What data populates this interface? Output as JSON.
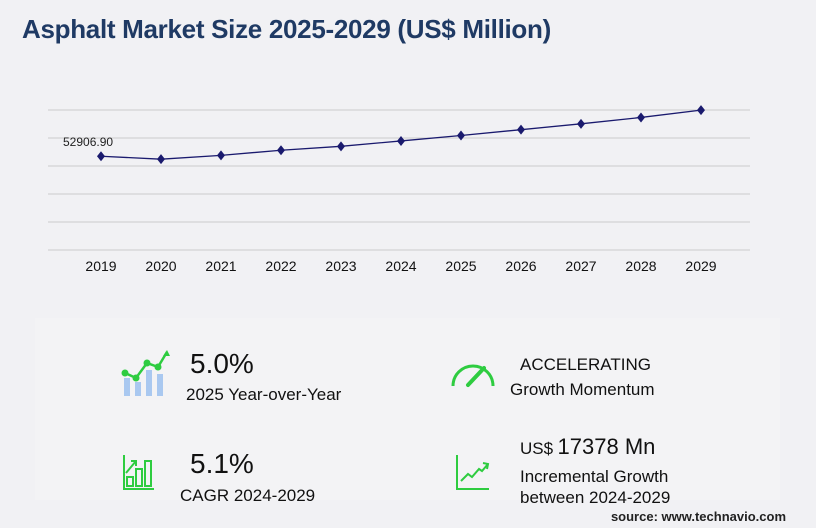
{
  "title": "Asphalt Market Size 2025-2029 (US$ Million)",
  "chart_data": {
    "type": "line",
    "title": "Asphalt Market Size 2025-2029 (US$ Million)",
    "categories": [
      "2019",
      "2020",
      "2021",
      "2022",
      "2023",
      "2024",
      "2025",
      "2026",
      "2027",
      "2028",
      "2029"
    ],
    "values": [
      52906.9,
      51250,
      53400,
      56300,
      58500,
      61537,
      64600,
      67900,
      71200,
      74800,
      78915
    ],
    "data_labels": {
      "2019": "52906.90"
    },
    "ylim": [
      0,
      79000
    ],
    "grid": true,
    "legend": "none",
    "series_color": "#1a1a6e"
  },
  "stats": {
    "yoy_value": "5.0%",
    "yoy_label": "2025 Year-over-Year",
    "momentum_value": "ACCELERATING",
    "momentum_label": "Growth Momentum",
    "cagr_value": "5.1%",
    "cagr_label": "CAGR 2024-2029",
    "incr_prefix": "US$",
    "incr_value": "17378 Mn",
    "incr_label1": "Incremental Growth",
    "incr_label2": "between 2024-2029"
  },
  "source": "source: www.technavio.com",
  "accent_color": "#2ecc40"
}
